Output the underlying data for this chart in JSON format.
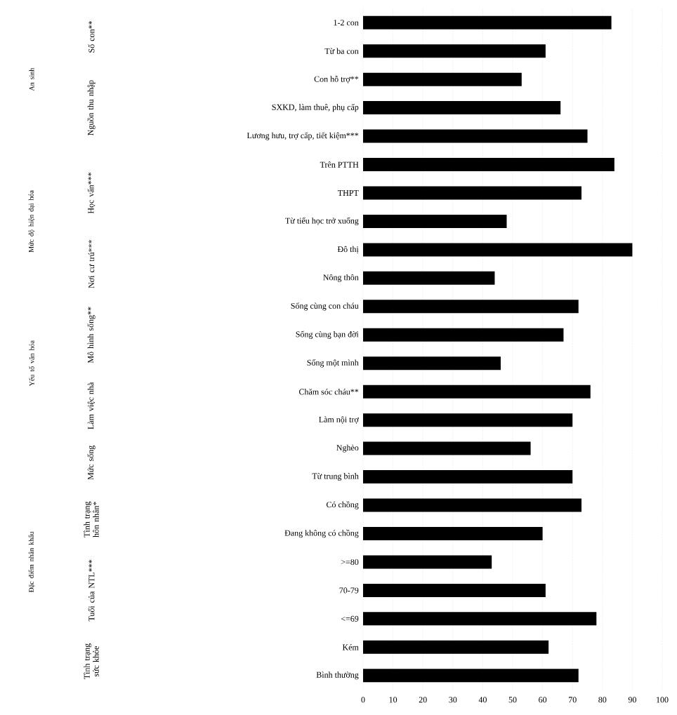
{
  "chart_data": {
    "type": "bar",
    "orientation": "horizontal",
    "color": "#000000",
    "categories": [
      "1-2 con",
      "Từ ba con",
      "Con hỗ trợ**",
      "SXKD, làm thuê, phụ cấp",
      "Lương hưu, trợ cấp, tiết kiệm***",
      "Trên PTTH",
      "THPT",
      "Từ tiểu học trở xuống",
      "Đô thị",
      "Nông thôn",
      "Sống cùng con cháu",
      "Sống cùng bạn đời",
      "Sống một mình",
      "Chăm sóc cháu**",
      "Làm nội trợ",
      "Nghèo",
      "Từ trung bình",
      "Có chồng",
      "Đang không có chồng",
      ">=80",
      "70-79",
      "<=69",
      "Kém",
      "Bình thường"
    ],
    "values": [
      83,
      61,
      53,
      66,
      75,
      84,
      73,
      48,
      90,
      44,
      72,
      67,
      46,
      76,
      70,
      56,
      70,
      73,
      60,
      43,
      61,
      78,
      62,
      72
    ],
    "xlim": [
      0,
      100
    ],
    "xticks": [
      0,
      10,
      20,
      30,
      40,
      50,
      60,
      70,
      80,
      90,
      100
    ],
    "grid": "x",
    "annotations": [
      "Số con**",
      "Nguồn thu nhập",
      "Học vấn***",
      "Nơi cư trú***",
      "Mô hình sống**",
      "Làm việc nhà",
      "Mức sống",
      "Tình trạng hôn nhân*",
      "Tuổi của NTL***",
      "Tình trạng sức khỏe",
      "An sinh",
      "Mức độ hiện đại hóa",
      "Yếu tố văn hóa",
      "Đặc điểm nhân khẩu"
    ]
  }
}
